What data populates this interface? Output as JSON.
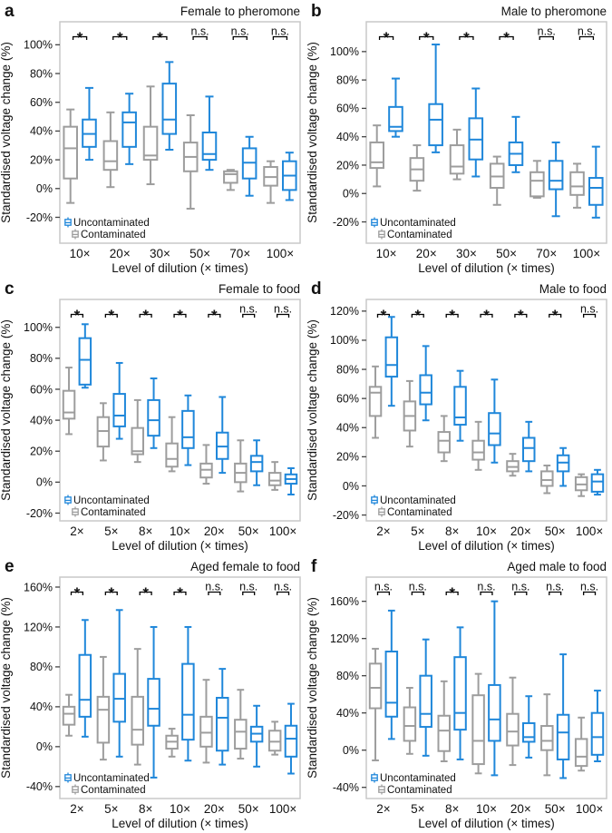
{
  "figure": {
    "y_axis_label": "Standardised voltage change (%)",
    "x_axis_label": "Level of dilution (× times)",
    "legend": {
      "uncontaminated_label": "Uncontaminated",
      "contaminated_label": "Contaminated"
    },
    "colors": {
      "uncontaminated": "#1f87da",
      "contaminated": "#9d9d9d",
      "frame": "#c9c9c9",
      "tick": "#444444",
      "significance": "#000000"
    }
  },
  "chart_data": [
    {
      "type": "boxplot",
      "panel_label": "a",
      "title": "Female to pheromone",
      "xlabel": "Level of dilution (× times)",
      "ylabel": "Standardised voltage change (%)",
      "categories": [
        "10×",
        "20×",
        "30×",
        "50×",
        "70×",
        "100×"
      ],
      "significance": [
        "*",
        "*",
        "*",
        "n.s.",
        "n.s.",
        "n.s."
      ],
      "yticks": [
        -20,
        0,
        20,
        40,
        60,
        80,
        100
      ],
      "ylim": [
        -38,
        116
      ],
      "box_format": [
        "whisker_low",
        "q1",
        "median",
        "q3",
        "whisker_high"
      ],
      "series": [
        {
          "name": "Contaminated",
          "color_key": "contaminated",
          "boxes": [
            [
              -10,
              7,
              28,
              43,
              55
            ],
            [
              1,
              13,
              19,
              33,
              53
            ],
            [
              3,
              20,
              23,
              43,
              71
            ],
            [
              -14,
              12,
              22,
              32,
              51
            ],
            [
              -1,
              4,
              10,
              12,
              13
            ],
            [
              -10,
              2,
              8,
              15,
              19
            ]
          ]
        },
        {
          "name": "Uncontaminated",
          "color_key": "uncontaminated",
          "boxes": [
            [
              20,
              29,
              38,
              48,
              70
            ],
            [
              17,
              29,
              46,
              53,
              66
            ],
            [
              27,
              38,
              48,
              73,
              88
            ],
            [
              13,
              20,
              24,
              39,
              64
            ],
            [
              -5,
              7,
              18,
              28,
              36
            ],
            [
              -8,
              -1,
              9,
              19,
              25
            ]
          ]
        }
      ]
    },
    {
      "type": "boxplot",
      "panel_label": "b",
      "title": "Male to pheromone",
      "xlabel": "Level of dilution (× times)",
      "ylabel": "Standardised voltage change (%)",
      "categories": [
        "10×",
        "20×",
        "30×",
        "50×",
        "70×",
        "100×"
      ],
      "significance": [
        "*",
        "*",
        "*",
        "*",
        "n.s.",
        "n.s."
      ],
      "yticks": [
        -20,
        0,
        20,
        40,
        60,
        80,
        100
      ],
      "ylim": [
        -35,
        121
      ],
      "box_format": [
        "whisker_low",
        "q1",
        "median",
        "q3",
        "whisker_high"
      ],
      "series": [
        {
          "name": "Contaminated",
          "color_key": "contaminated",
          "boxes": [
            [
              5,
              18,
              22,
              36,
              48
            ],
            [
              2,
              9,
              17,
              25,
              34
            ],
            [
              10,
              14,
              19,
              34,
              45
            ],
            [
              -8,
              4,
              12,
              21,
              26
            ],
            [
              -3,
              -2,
              9,
              15,
              23
            ],
            [
              -10,
              -1,
              5,
              15,
              21
            ]
          ]
        },
        {
          "name": "Uncontaminated",
          "color_key": "uncontaminated",
          "boxes": [
            [
              40,
              44,
              47,
              61,
              81
            ],
            [
              29,
              34,
              52,
              63,
              105
            ],
            [
              12,
              24,
              38,
              53,
              74
            ],
            [
              15,
              20,
              28,
              36,
              54
            ],
            [
              -16,
              3,
              9,
              23,
              36
            ],
            [
              -17,
              -8,
              4,
              11,
              33
            ]
          ]
        }
      ]
    },
    {
      "type": "boxplot",
      "panel_label": "c",
      "title": "Female to food",
      "xlabel": "Level of dilution (× times)",
      "ylabel": "Standardised voltage change (%)",
      "categories": [
        "2×",
        "5×",
        "8×",
        "10×",
        "20×",
        "50×",
        "100×"
      ],
      "significance": [
        "*",
        "*",
        "*",
        "*",
        "*",
        "n.s.",
        "n.s."
      ],
      "yticks": [
        -20,
        0,
        20,
        40,
        60,
        80,
        100
      ],
      "ylim": [
        -25,
        118
      ],
      "box_format": [
        "whisker_low",
        "q1",
        "median",
        "q3",
        "whisker_high"
      ],
      "series": [
        {
          "name": "Contaminated",
          "color_key": "contaminated",
          "boxes": [
            [
              31,
              41,
              45,
              59,
              74
            ],
            [
              14,
              23,
              33,
              42,
              51
            ],
            [
              13,
              18,
              20,
              35,
              53
            ],
            [
              7,
              10,
              15,
              25,
              42
            ],
            [
              -1,
              3,
              8,
              12,
              24
            ],
            [
              -6,
              0,
              6,
              12,
              27
            ],
            [
              -5,
              -2,
              1,
              6,
              13
            ]
          ]
        },
        {
          "name": "Uncontaminated",
          "color_key": "uncontaminated",
          "boxes": [
            [
              61,
              63,
              79,
              93,
              102
            ],
            [
              28,
              36,
              43,
              57,
              77
            ],
            [
              22,
              30,
              40,
              53,
              67
            ],
            [
              11,
              22,
              29,
              46,
              56
            ],
            [
              6,
              15,
              23,
              32,
              55
            ],
            [
              -2,
              7,
              13,
              17,
              27
            ],
            [
              -8,
              -1,
              2,
              5,
              9
            ]
          ]
        }
      ]
    },
    {
      "type": "boxplot",
      "panel_label": "d",
      "title": "Male to food",
      "xlabel": "Level of dilution (× times)",
      "ylabel": "Standardised voltage change (%)",
      "categories": [
        "2×",
        "5×",
        "8×",
        "10×",
        "20×",
        "50×",
        "100×"
      ],
      "significance": [
        "*",
        "*",
        "*",
        "*",
        "*",
        "*",
        "n.s."
      ],
      "yticks": [
        -20,
        0,
        20,
        40,
        60,
        80,
        100,
        120
      ],
      "ylim": [
        -24,
        128
      ],
      "box_format": [
        "whisker_low",
        "q1",
        "median",
        "q3",
        "whisker_high"
      ],
      "series": [
        {
          "name": "Contaminated",
          "color_key": "contaminated",
          "boxes": [
            [
              33,
              48,
              64,
              68,
              82
            ],
            [
              27,
              38,
              48,
              58,
              72
            ],
            [
              17,
              23,
              31,
              37,
              48
            ],
            [
              11,
              18,
              23,
              31,
              44
            ],
            [
              7,
              10,
              13,
              17,
              22
            ],
            [
              -5,
              0,
              4,
              10,
              14
            ],
            [
              -7,
              -3,
              1,
              6,
              8
            ]
          ]
        },
        {
          "name": "Uncontaminated",
          "color_key": "uncontaminated",
          "boxes": [
            [
              55,
              75,
              83,
              102,
              116
            ],
            [
              45,
              56,
              64,
              76,
              96
            ],
            [
              31,
              42,
              47,
              68,
              79
            ],
            [
              16,
              28,
              36,
              50,
              73
            ],
            [
              10,
              17,
              26,
              33,
              44
            ],
            [
              0,
              10,
              16,
              21,
              26
            ],
            [
              -6,
              -4,
              3,
              8,
              11
            ]
          ]
        }
      ]
    },
    {
      "type": "boxplot",
      "panel_label": "e",
      "title": "Aged female to food",
      "xlabel": "Level of dilution (× times)",
      "ylabel": "Standardised voltage change (%)",
      "categories": [
        "2×",
        "5×",
        "8×",
        "10×",
        "20×",
        "50×",
        "100×"
      ],
      "significance": [
        "*",
        "*",
        "*",
        "*",
        "n.s.",
        "n.s.",
        "n.s."
      ],
      "yticks": [
        -40,
        0,
        40,
        80,
        120,
        160
      ],
      "ylim": [
        -52,
        170
      ],
      "box_format": [
        "whisker_low",
        "q1",
        "median",
        "q3",
        "whisker_high"
      ],
      "series": [
        {
          "name": "Contaminated",
          "color_key": "contaminated",
          "boxes": [
            [
              11,
              22,
              33,
              40,
              52
            ],
            [
              -13,
              4,
              37,
              50,
              90
            ],
            [
              -18,
              2,
              17,
              50,
              98
            ],
            [
              -10,
              -2,
              5,
              11,
              18
            ],
            [
              -16,
              0,
              14,
              30,
              67
            ],
            [
              -12,
              -2,
              15,
              27,
              57
            ],
            [
              -8,
              -4,
              5,
              16,
              25
            ]
          ]
        },
        {
          "name": "Uncontaminated",
          "color_key": "uncontaminated",
          "boxes": [
            [
              10,
              30,
              47,
              92,
              127
            ],
            [
              -10,
              25,
              48,
              73,
              137
            ],
            [
              -31,
              21,
              38,
              68,
              120
            ],
            [
              -14,
              7,
              32,
              83,
              120
            ],
            [
              -18,
              -4,
              29,
              49,
              78
            ],
            [
              -20,
              5,
              13,
              20,
              41
            ],
            [
              -27,
              -10,
              8,
              21,
              43
            ]
          ]
        }
      ]
    },
    {
      "type": "boxplot",
      "panel_label": "f",
      "title": "Aged male to food",
      "xlabel": "Level of dilution (× times)",
      "ylabel": "Standardised voltage change (%)",
      "categories": [
        "2×",
        "5×",
        "8×",
        "10×",
        "20×",
        "50×",
        "100×"
      ],
      "significance": [
        "n.s.",
        "n.s.",
        "*",
        "n.s.",
        "n.s.",
        "n.s.",
        "n.s."
      ],
      "yticks": [
        -40,
        0,
        40,
        80,
        120,
        160
      ],
      "ylim": [
        -52,
        186
      ],
      "box_format": [
        "whisker_low",
        "q1",
        "median",
        "q3",
        "whisker_high"
      ],
      "series": [
        {
          "name": "Contaminated",
          "color_key": "contaminated",
          "boxes": [
            [
              -11,
              45,
              67,
              93,
              109
            ],
            [
              -4,
              10,
              26,
              46,
              67
            ],
            [
              -12,
              -1,
              21,
              37,
              74
            ],
            [
              -25,
              -15,
              10,
              59,
              82
            ],
            [
              -16,
              5,
              20,
              39,
              78
            ],
            [
              -27,
              0,
              10,
              26,
              60
            ],
            [
              -22,
              -17,
              -7,
              12,
              35
            ]
          ]
        },
        {
          "name": "Uncontaminated",
          "color_key": "uncontaminated",
          "boxes": [
            [
              12,
              36,
              51,
              106,
              150
            ],
            [
              -6,
              25,
              39,
              80,
              119
            ],
            [
              -10,
              22,
              40,
              100,
              132
            ],
            [
              -27,
              10,
              33,
              70,
              160
            ],
            [
              -8,
              9,
              14,
              29,
              58
            ],
            [
              -30,
              -10,
              19,
              38,
              103
            ],
            [
              -12,
              -5,
              14,
              40,
              64
            ]
          ]
        }
      ]
    }
  ]
}
